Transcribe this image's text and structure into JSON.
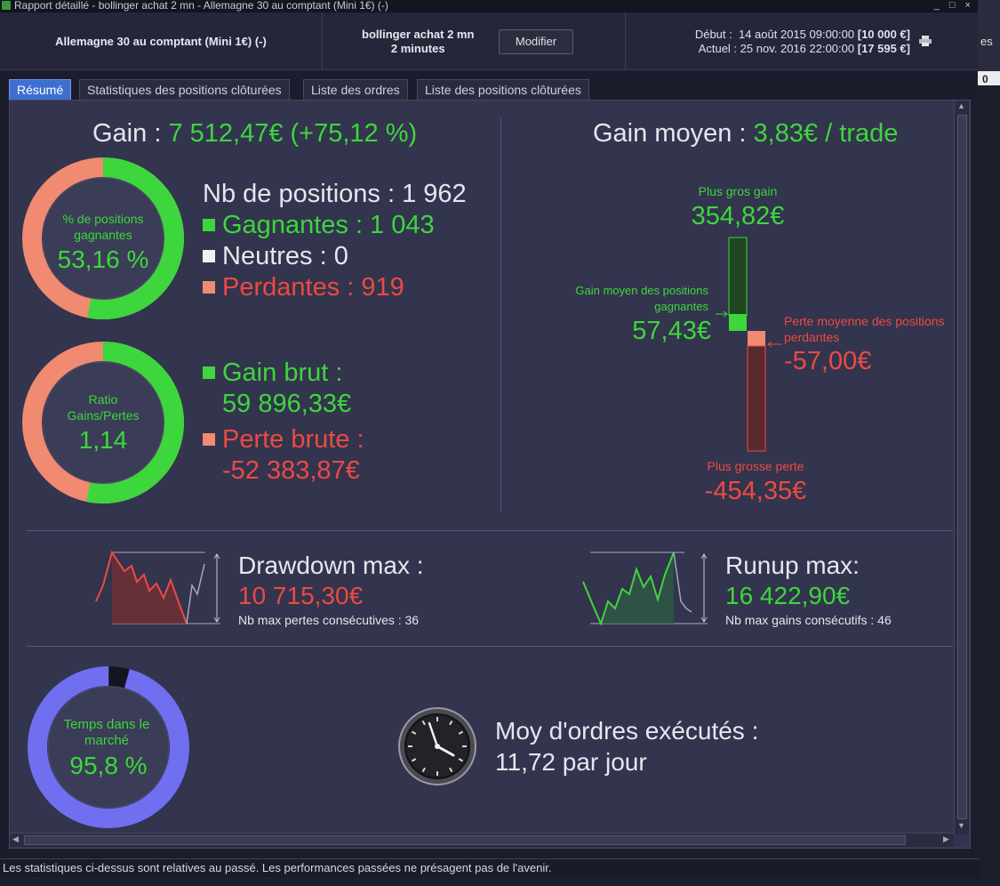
{
  "window": {
    "title": "Rapport détaillé - bollinger achat 2 mn - Allemagne 30 au comptant (Mini 1€) (-)",
    "controls": "_ □ ×"
  },
  "header": {
    "instrument": "Allemagne 30 au comptant (Mini 1€) (-)",
    "strategy_name": "bollinger achat 2 mn",
    "strategy_period": "2 minutes",
    "modify_label": "Modifier",
    "start_label": "Début :",
    "start_date": "14 août 2015 09:00:00",
    "start_capital": "[10 000 €]",
    "current_label": "Actuel :",
    "current_date": "25 nov. 2016 22:00:00",
    "current_capital": "[17 595 €]"
  },
  "right_strip": {
    "text1": "es",
    "text2": "0"
  },
  "tabs": [
    {
      "label": "Résumé",
      "active": true
    },
    {
      "label": "Statistiques des positions clôturées",
      "active": false
    },
    {
      "label": "Liste des ordres",
      "active": false
    },
    {
      "label": "Liste des positions clôturées",
      "active": false
    }
  ],
  "summary": {
    "gain_label": "Gain :",
    "gain_value": "7 512,47€ (+75,12 %)",
    "win_donut": {
      "title": "% de positions gagnantes",
      "value": "53,16 %",
      "fraction": 0.5316
    },
    "positions_label": "Nb de positions : 1 962",
    "winners": "Gagnantes : 1 043",
    "neutral": "Neutres : 0",
    "losers": "Perdantes : 919",
    "ratio_donut": {
      "title": "Ratio Gains/Pertes",
      "value": "1,14",
      "fraction": 0.5335
    },
    "gross_gain_label": "Gain brut :",
    "gross_gain_value": "59 896,33€",
    "gross_loss_label": "Perte brute :",
    "gross_loss_value": "-52 383,87€",
    "avg_gain_label": "Gain moyen :",
    "avg_gain_value": "3,83€ / trade",
    "biggest_gain_label": "Plus gros gain",
    "biggest_gain_value": "354,82€",
    "avg_win_label": "Gain moyen des positions gagnantes",
    "avg_win_value": "57,43€",
    "avg_loss_label": "Perte moyenne des positions perdantes",
    "avg_loss_value": "-57,00€",
    "biggest_loss_label": "Plus grosse perte",
    "biggest_loss_value": "-454,35€",
    "drawdown_label": "Drawdown max :",
    "drawdown_value": "10 715,30€",
    "max_consec_losses": "Nb max pertes consécutives : 36",
    "runup_label": "Runup max:",
    "runup_value": "16 422,90€",
    "max_consec_gains": "Nb max gains consécutifs : 46",
    "time_donut": {
      "title": "Temps dans le marché",
      "value": "95,8 %",
      "fraction": 0.958
    },
    "orders_label": "Moy d'ordres exécutés :",
    "orders_value": "11,72 par jour"
  },
  "status_text": "Les statistiques ci-dessus sont relatives au passé. Les performances passées ne présagent pas de l'avenir.",
  "colors": {
    "gain": "#3dd63d",
    "loss": "#ec4a43",
    "loss_light": "#f08a70",
    "time_ring": "#6f6ff0",
    "background": "#33344d"
  }
}
